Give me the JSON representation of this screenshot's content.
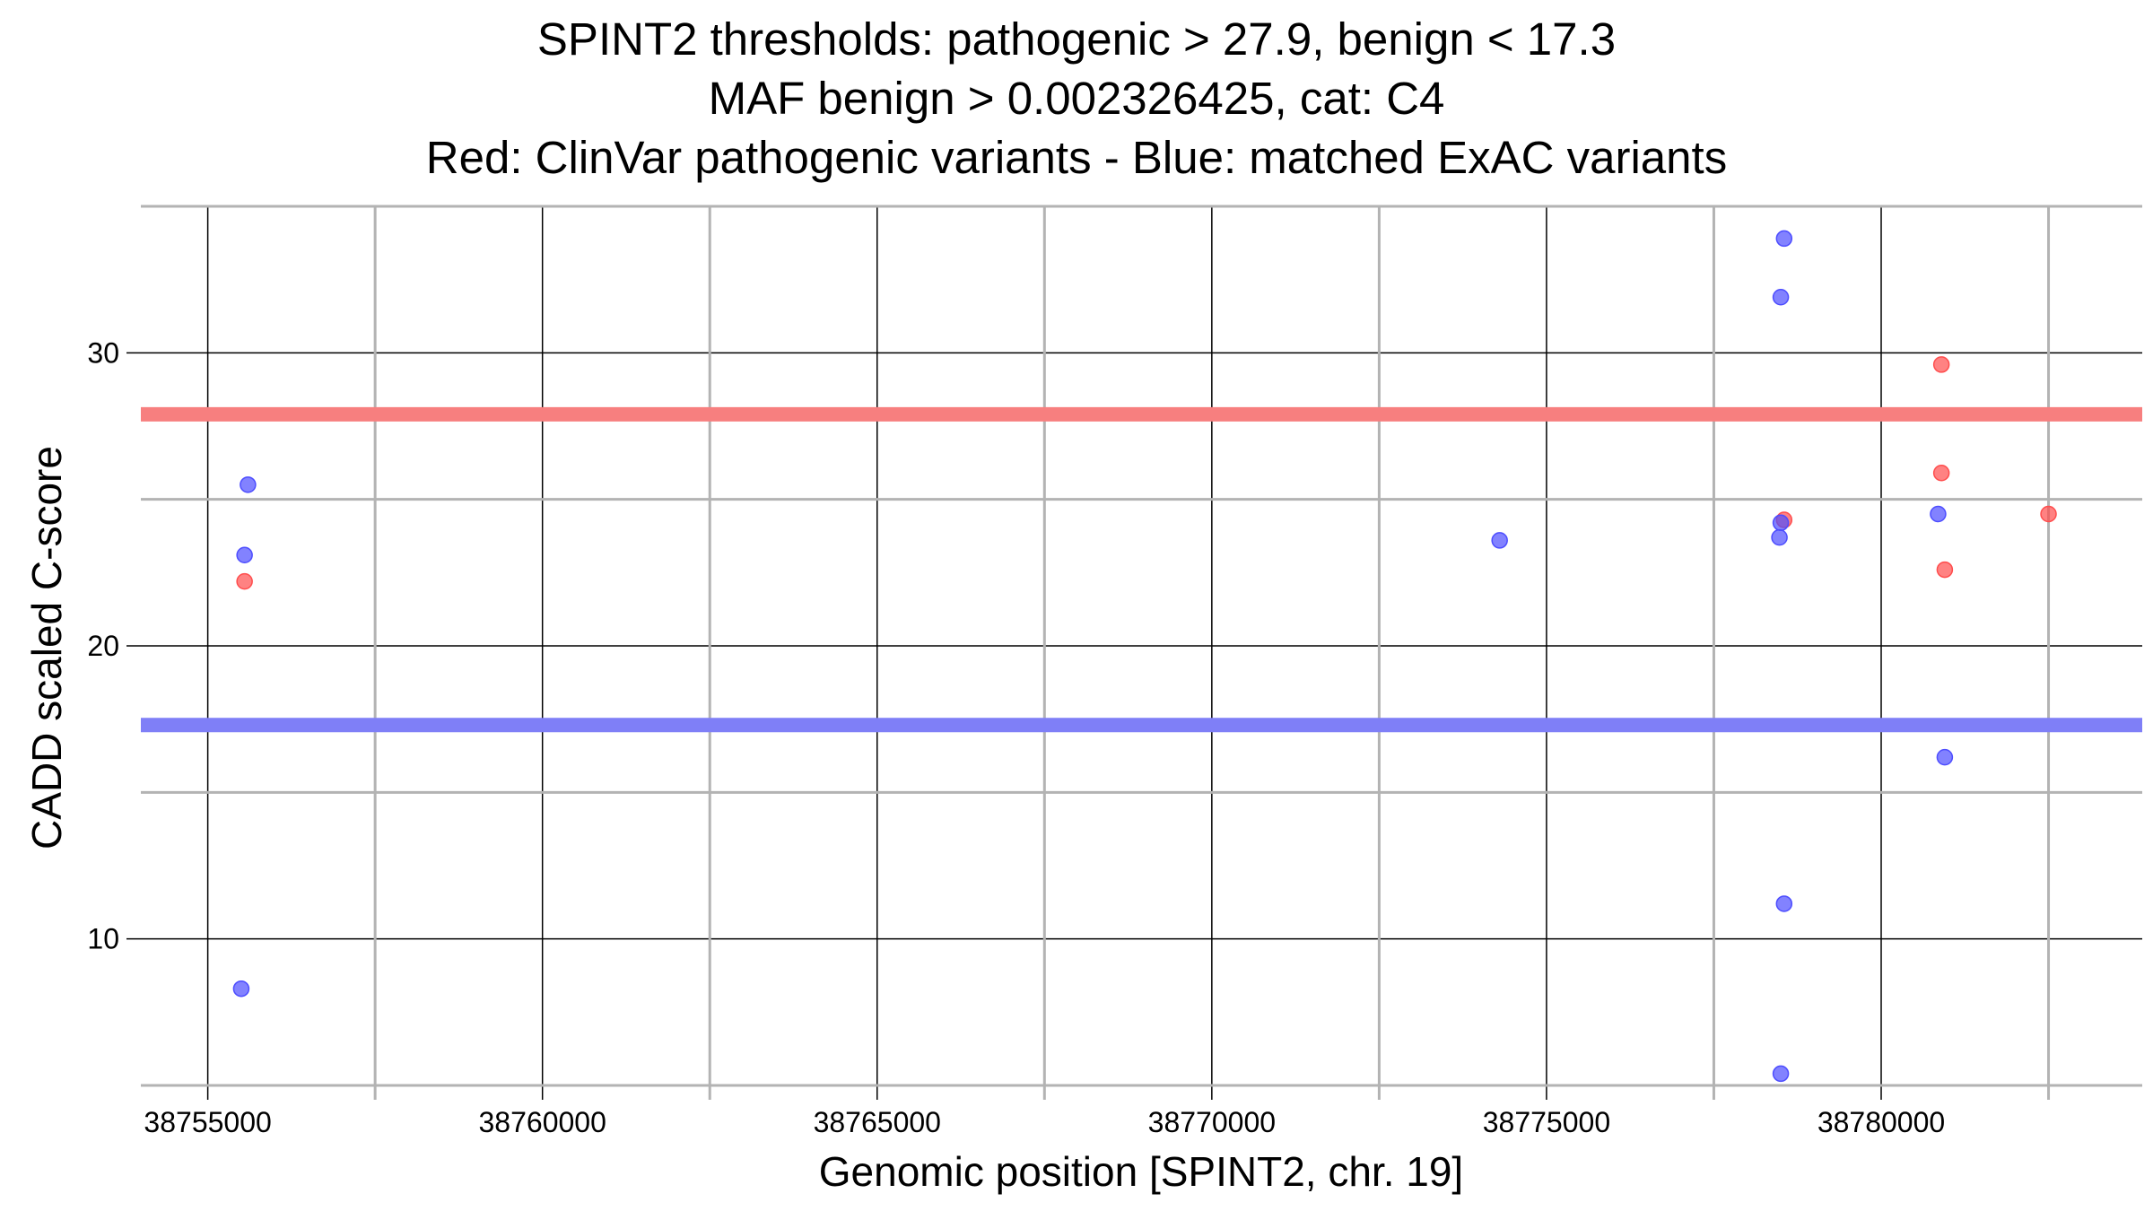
{
  "chart_data": {
    "type": "scatter",
    "title_lines": [
      "SPINT2 thresholds: pathogenic > 27.9, benign < 17.3",
      "MAF benign > 0.002326425, cat: C4",
      "Red: ClinVar pathogenic variants - Blue: matched ExAC variants"
    ],
    "xlabel": "Genomic position [SPINT2, chr. 19]",
    "ylabel": "CADD scaled C-score",
    "xlim": [
      38754000,
      38783900
    ],
    "ylim": [
      5,
      35
    ],
    "x_ticks": [
      38755000,
      38760000,
      38765000,
      38770000,
      38775000,
      38780000
    ],
    "x_tick_labels": [
      "38755000",
      "38760000",
      "38765000",
      "38770000",
      "38775000",
      "38780000"
    ],
    "y_ticks": [
      10,
      20,
      30
    ],
    "y_tick_labels": [
      "10",
      "20",
      "30"
    ],
    "grid": true,
    "thresholds": [
      {
        "name": "pathogenic",
        "y": 27.9,
        "color": "#f77f7f"
      },
      {
        "name": "benign",
        "y": 17.3,
        "color": "#7f7ff7"
      }
    ],
    "series": [
      {
        "color": "#ff4d4d",
        "points": [
          {
            "x": 38755550,
            "y": 22.2
          },
          {
            "x": 38778550,
            "y": 24.3
          },
          {
            "x": 38780900,
            "y": 29.6
          },
          {
            "x": 38780900,
            "y": 25.9
          },
          {
            "x": 38780950,
            "y": 22.6
          },
          {
            "x": 38782500,
            "y": 24.5
          }
        ]
      },
      {
        "color": "#4d4dff",
        "points": [
          {
            "x": 38755600,
            "y": 25.5
          },
          {
            "x": 38755550,
            "y": 23.1
          },
          {
            "x": 38755500,
            "y": 8.3
          },
          {
            "x": 38774300,
            "y": 23.6
          },
          {
            "x": 38778550,
            "y": 33.9
          },
          {
            "x": 38778500,
            "y": 31.9
          },
          {
            "x": 38778500,
            "y": 24.2
          },
          {
            "x": 38778480,
            "y": 23.7
          },
          {
            "x": 38778550,
            "y": 11.2
          },
          {
            "x": 38778500,
            "y": 5.4
          },
          {
            "x": 38780850,
            "y": 24.5
          },
          {
            "x": 38780950,
            "y": 16.2
          }
        ]
      }
    ]
  }
}
